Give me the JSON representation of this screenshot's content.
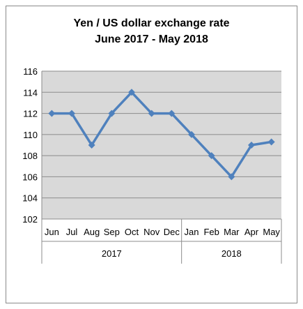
{
  "chart_data": {
    "type": "line",
    "title": "Yen / US dollar exchange rate",
    "subtitle": "June 2017 - May 2018",
    "categories": [
      "Jun",
      "Jul",
      "Aug",
      "Sep",
      "Oct",
      "Nov",
      "Dec",
      "Jan",
      "Feb",
      "Mar",
      "Apr",
      "May"
    ],
    "groups": [
      {
        "label": "2017",
        "count": 7
      },
      {
        "label": "2018",
        "count": 5
      }
    ],
    "values": [
      112,
      112,
      109,
      112,
      114,
      112,
      112,
      110,
      108,
      106,
      109,
      109.3
    ],
    "xlabel": "",
    "ylabel": "",
    "ylim": [
      102,
      116
    ],
    "yticks": [
      102,
      104,
      106,
      108,
      110,
      112,
      114,
      116
    ],
    "grid": true,
    "legend": "none",
    "colors": {
      "line": "#4f81bd",
      "plot_background": "#d9d9d9",
      "gridline": "#8c8c8c",
      "axis": "#8c8c8c"
    }
  }
}
